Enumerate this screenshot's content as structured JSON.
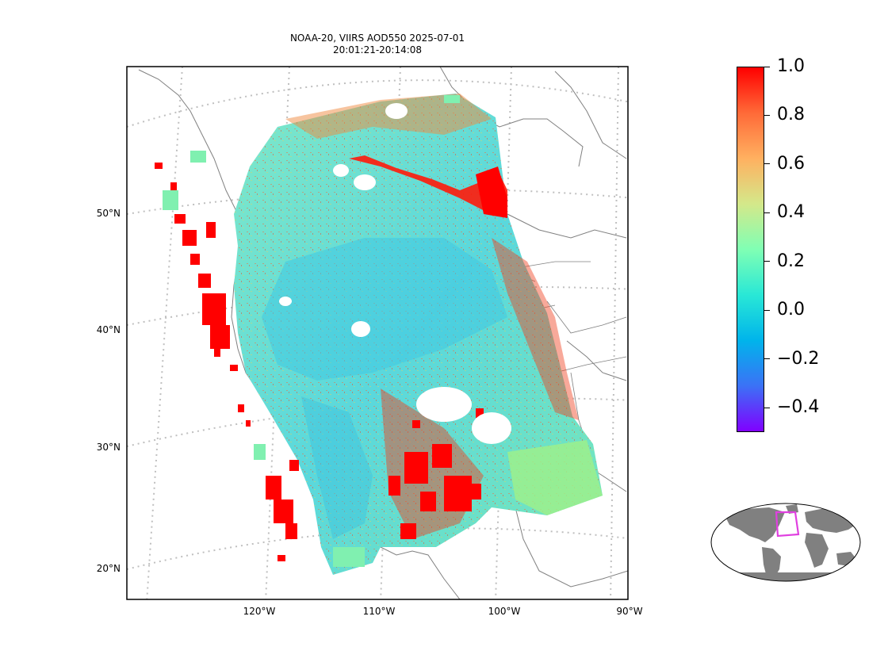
{
  "title": {
    "line1": "NOAA-20, VIIRS AOD550 2025-07-01",
    "line2": "20:01:21-20:14:08"
  },
  "map": {
    "projection": "Lambert conformal",
    "lat_labels": [
      "50°N",
      "40°N",
      "30°N",
      "20°N"
    ],
    "lon_labels": [
      "120°W",
      "110°W",
      "100°W",
      "90°W"
    ],
    "coastline_color": "#808080",
    "gridline_color": "#bfbfbf",
    "gridline_style": "dotted"
  },
  "colorbar": {
    "colormap": "rainbow",
    "min": -0.5,
    "max": 1.0,
    "tick_values": [
      1.0,
      0.8,
      0.6,
      0.4,
      0.2,
      0.0,
      -0.2,
      -0.4
    ],
    "tick_labels": [
      "1.0",
      "0.8",
      "0.6",
      "0.4",
      "0.2",
      "0.0",
      "−0.2",
      "−0.4"
    ],
    "colors": [
      "#8000ff",
      "#3b72f6",
      "#00b4eb",
      "#29e8d6",
      "#80ffb4",
      "#d4e88a",
      "#ffb060",
      "#ff6a38",
      "#ff0000"
    ]
  },
  "inset": {
    "description_icon": "world-globe-icon",
    "land_color": "#808080",
    "highlight_color": "#e040e0"
  }
}
